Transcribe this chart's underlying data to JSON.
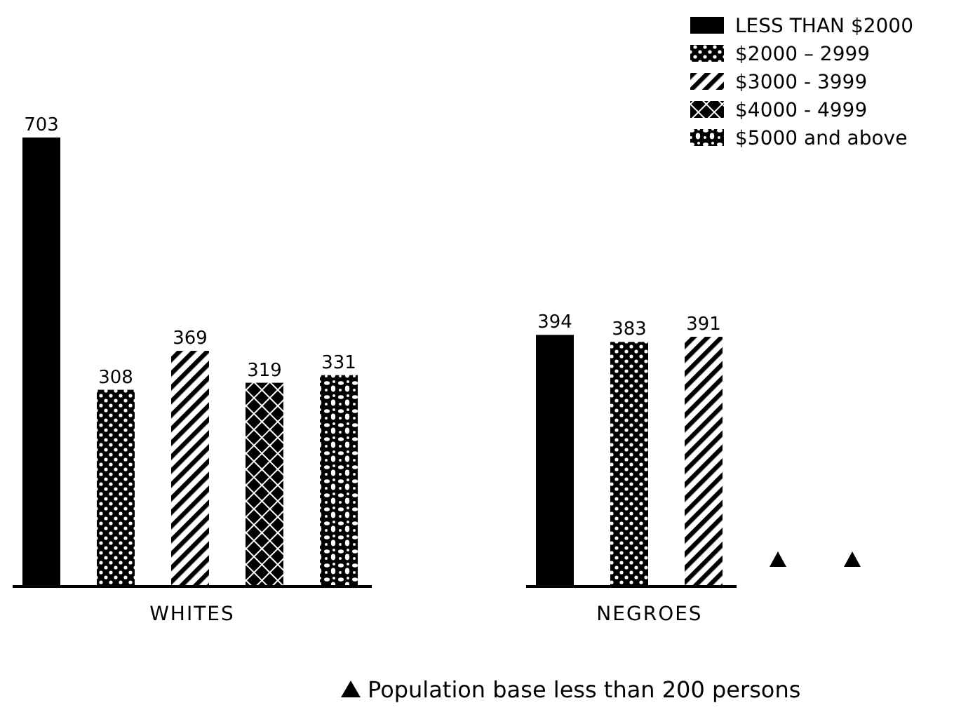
{
  "chart_data": {
    "type": "bar",
    "categories": [
      "WHITES",
      "NEGROES"
    ],
    "series": [
      {
        "name": "LESS THAN $2000",
        "color": "#000000",
        "values": [
          703,
          394
        ]
      },
      {
        "name": "$2000 – 2999",
        "color": "#000000",
        "values": [
          308,
          383
        ]
      },
      {
        "name": "$3000 - 3999",
        "color": "#000000",
        "values": [
          369,
          391
        ]
      },
      {
        "name": "$4000 - 4999",
        "color": "#000000",
        "values": [
          319,
          null
        ]
      },
      {
        "name": "$5000 and above",
        "color": "#000000",
        "values": [
          331,
          null
        ]
      }
    ],
    "data_labels": true,
    "legend": "top right",
    "annotations": [
      "Population base less than 200 persons"
    ]
  }
}
